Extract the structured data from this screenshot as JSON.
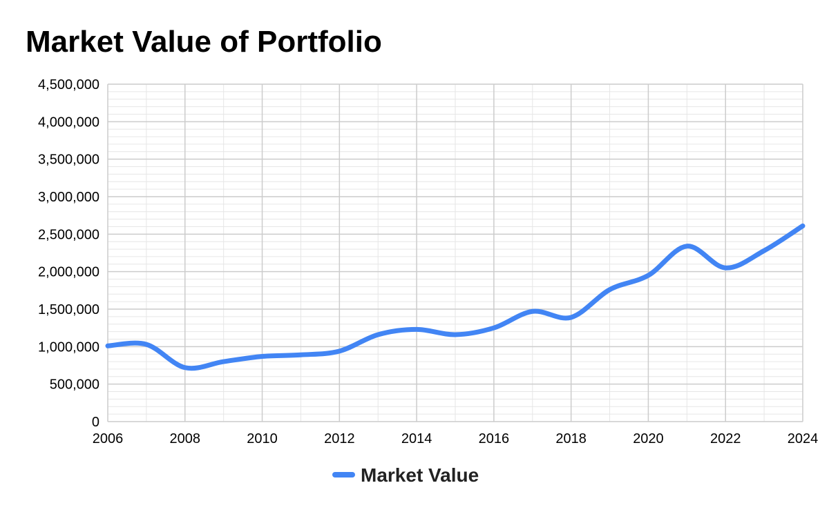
{
  "chart_data": {
    "type": "line",
    "title": "Market Value of Portfolio",
    "xlabel": "",
    "ylabel": "",
    "xlim": [
      2006,
      2024
    ],
    "ylim": [
      0,
      4500000
    ],
    "x_ticks": [
      "2006",
      "2008",
      "2010",
      "2012",
      "2014",
      "2016",
      "2018",
      "2020",
      "2022",
      "2024"
    ],
    "y_ticks": [
      "0",
      "500,000",
      "1,000,000",
      "1,500,000",
      "2,000,000",
      "2,500,000",
      "3,000,000",
      "3,500,000",
      "4,000,000",
      "4,500,000"
    ],
    "grid": true,
    "legend_position": "bottom",
    "series": [
      {
        "name": "Market Value",
        "color": "#4285f4",
        "x": [
          2006,
          2007,
          2008,
          2009,
          2010,
          2011,
          2012,
          2013,
          2014,
          2015,
          2016,
          2017,
          2018,
          2019,
          2020,
          2021,
          2022,
          2023,
          2024
        ],
        "y": [
          1010000,
          1030000,
          720000,
          800000,
          870000,
          890000,
          940000,
          1160000,
          1230000,
          1160000,
          1250000,
          1470000,
          1390000,
          1760000,
          1950000,
          2340000,
          2050000,
          2280000,
          2610000
        ]
      }
    ]
  }
}
